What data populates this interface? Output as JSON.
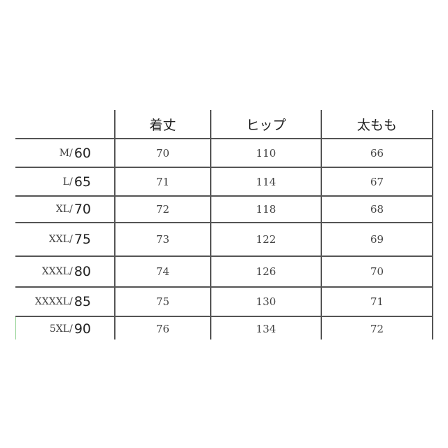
{
  "table": {
    "headers": [
      "",
      "着丈",
      "ヒップ",
      "太もも"
    ],
    "rows": [
      {
        "size": "M/",
        "weight": "60",
        "length": "70",
        "hip": "110",
        "thigh": "66"
      },
      {
        "size": "L/",
        "weight": "65",
        "length": "71",
        "hip": "114",
        "thigh": "67"
      },
      {
        "size": "XL/",
        "weight": "70",
        "length": "72",
        "hip": "118",
        "thigh": "68"
      },
      {
        "size": "XXL/",
        "weight": "75",
        "length": "73",
        "hip": "122",
        "thigh": "69"
      },
      {
        "size": "XXXL/",
        "weight": "80",
        "length": "74",
        "hip": "126",
        "thigh": "70"
      },
      {
        "size": "XXXXL/",
        "weight": "85",
        "length": "75",
        "hip": "130",
        "thigh": "71"
      },
      {
        "size": "5XL/",
        "weight": "90",
        "length": "76",
        "hip": "134",
        "thigh": "72"
      }
    ]
  }
}
